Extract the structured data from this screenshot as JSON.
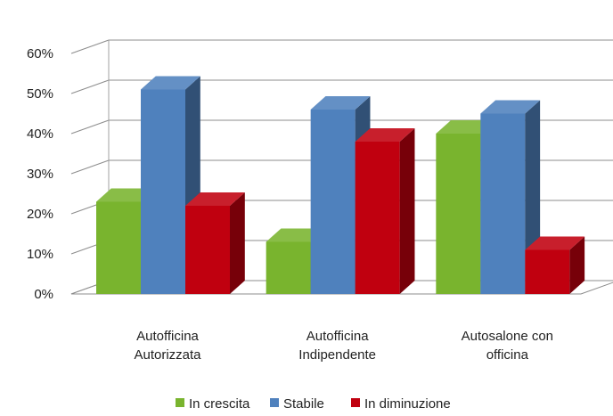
{
  "chart_data": {
    "type": "bar",
    "three_d": true,
    "categories": [
      [
        "Autofficina",
        "Autorizzata"
      ],
      [
        "Autofficina",
        "Indipendente"
      ],
      [
        "Autosalone con",
        "officina"
      ]
    ],
    "series": [
      {
        "name": "In crescita",
        "values": [
          0.23,
          0.13,
          0.4
        ],
        "color": "#79B42E"
      },
      {
        "name": "Stabile",
        "values": [
          0.51,
          0.46,
          0.45
        ],
        "color": "#4F81BD"
      },
      {
        "name": "In diminuzione",
        "values": [
          0.22,
          0.38,
          0.11
        ],
        "color": "#C0000F"
      }
    ],
    "y_ticks": [
      "0%",
      "10%",
      "20%",
      "30%",
      "40%",
      "50%",
      "60%"
    ],
    "ylim": [
      0,
      0.6
    ],
    "grid": true,
    "legend_position": "bottom"
  }
}
